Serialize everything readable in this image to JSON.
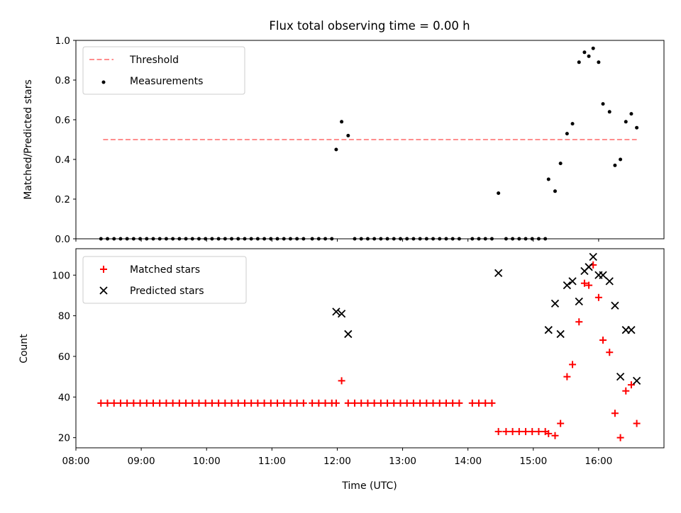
{
  "chart_data": [
    {
      "type": "scatter",
      "title": "Flux total observing time = 0.00 h",
      "xlabel": "",
      "ylabel": "Matched/Predicted stars",
      "xlim": [
        "08:00",
        "17:00"
      ],
      "ylim": [
        0,
        1.0
      ],
      "yticks": [
        "0.0",
        "0.2",
        "0.4",
        "0.6",
        "0.8",
        "1.0"
      ],
      "legend_position": "top-left",
      "threshold": {
        "name": "Threshold",
        "value": 0.5,
        "x_range": [
          "08:25",
          "16:35"
        ],
        "color": "#ff7f7f"
      },
      "series": [
        {
          "name": "Measurements",
          "color": "#000000",
          "points": [
            [
              "08:23",
              0
            ],
            [
              "08:29",
              0
            ],
            [
              "08:35",
              0
            ],
            [
              "08:41",
              0
            ],
            [
              "08:47",
              0
            ],
            [
              "08:53",
              0
            ],
            [
              "08:59",
              0
            ],
            [
              "09:05",
              0
            ],
            [
              "09:11",
              0
            ],
            [
              "09:17",
              0
            ],
            [
              "09:23",
              0
            ],
            [
              "09:29",
              0
            ],
            [
              "09:35",
              0
            ],
            [
              "09:41",
              0
            ],
            [
              "09:47",
              0
            ],
            [
              "09:53",
              0
            ],
            [
              "09:59",
              0
            ],
            [
              "10:05",
              0
            ],
            [
              "10:11",
              0
            ],
            [
              "10:17",
              0
            ],
            [
              "10:23",
              0
            ],
            [
              "10:29",
              0
            ],
            [
              "10:35",
              0
            ],
            [
              "10:41",
              0
            ],
            [
              "10:47",
              0
            ],
            [
              "10:53",
              0
            ],
            [
              "10:59",
              0
            ],
            [
              "11:05",
              0
            ],
            [
              "11:11",
              0
            ],
            [
              "11:17",
              0
            ],
            [
              "11:23",
              0
            ],
            [
              "11:29",
              0
            ],
            [
              "11:37",
              0
            ],
            [
              "11:43",
              0
            ],
            [
              "11:49",
              0
            ],
            [
              "11:55",
              0
            ],
            [
              "11:59",
              0.45
            ],
            [
              "12:04",
              0.59
            ],
            [
              "12:10",
              0.52
            ],
            [
              "12:16",
              0
            ],
            [
              "12:22",
              0
            ],
            [
              "12:28",
              0
            ],
            [
              "12:34",
              0
            ],
            [
              "12:40",
              0
            ],
            [
              "12:46",
              0
            ],
            [
              "12:52",
              0
            ],
            [
              "12:58",
              0
            ],
            [
              "13:04",
              0
            ],
            [
              "13:10",
              0
            ],
            [
              "13:16",
              0
            ],
            [
              "13:22",
              0
            ],
            [
              "13:28",
              0
            ],
            [
              "13:34",
              0
            ],
            [
              "13:40",
              0
            ],
            [
              "13:46",
              0
            ],
            [
              "13:52",
              0
            ],
            [
              "14:04",
              0
            ],
            [
              "14:10",
              0
            ],
            [
              "14:16",
              0
            ],
            [
              "14:22",
              0
            ],
            [
              "14:28",
              0.23
            ],
            [
              "14:35",
              0
            ],
            [
              "14:41",
              0
            ],
            [
              "14:47",
              0
            ],
            [
              "14:53",
              0
            ],
            [
              "14:59",
              0
            ],
            [
              "15:05",
              0
            ],
            [
              "15:11",
              0
            ],
            [
              "15:14",
              0.3
            ],
            [
              "15:20",
              0.24
            ],
            [
              "15:25",
              0.38
            ],
            [
              "15:31",
              0.53
            ],
            [
              "15:36",
              0.58
            ],
            [
              "15:42",
              0.89
            ],
            [
              "15:47",
              0.94
            ],
            [
              "15:51",
              0.92
            ],
            [
              "15:55",
              0.96
            ],
            [
              "16:00",
              0.89
            ],
            [
              "16:04",
              0.68
            ],
            [
              "16:10",
              0.64
            ],
            [
              "16:15",
              0.37
            ],
            [
              "16:20",
              0.4
            ],
            [
              "16:25",
              0.59
            ],
            [
              "16:30",
              0.63
            ],
            [
              "16:35",
              0.56
            ]
          ]
        }
      ]
    },
    {
      "type": "scatter",
      "title": "",
      "xlabel": "Time (UTC)",
      "ylabel": "Count",
      "xlim": [
        "08:00",
        "17:00"
      ],
      "ylim": [
        15,
        113
      ],
      "xticks": [
        "08:00",
        "09:00",
        "10:00",
        "11:00",
        "12:00",
        "13:00",
        "14:00",
        "15:00",
        "16:00"
      ],
      "yticks": [
        "20",
        "40",
        "60",
        "80",
        "100"
      ],
      "legend_position": "top-left",
      "series": [
        {
          "name": "Matched stars",
          "marker": "plus",
          "color": "#ff0000",
          "points": [
            [
              "08:23",
              37
            ],
            [
              "08:29",
              37
            ],
            [
              "08:35",
              37
            ],
            [
              "08:41",
              37
            ],
            [
              "08:47",
              37
            ],
            [
              "08:53",
              37
            ],
            [
              "08:59",
              37
            ],
            [
              "09:05",
              37
            ],
            [
              "09:11",
              37
            ],
            [
              "09:17",
              37
            ],
            [
              "09:23",
              37
            ],
            [
              "09:29",
              37
            ],
            [
              "09:35",
              37
            ],
            [
              "09:41",
              37
            ],
            [
              "09:47",
              37
            ],
            [
              "09:53",
              37
            ],
            [
              "09:59",
              37
            ],
            [
              "10:05",
              37
            ],
            [
              "10:11",
              37
            ],
            [
              "10:17",
              37
            ],
            [
              "10:23",
              37
            ],
            [
              "10:29",
              37
            ],
            [
              "10:35",
              37
            ],
            [
              "10:41",
              37
            ],
            [
              "10:47",
              37
            ],
            [
              "10:53",
              37
            ],
            [
              "10:59",
              37
            ],
            [
              "11:05",
              37
            ],
            [
              "11:11",
              37
            ],
            [
              "11:17",
              37
            ],
            [
              "11:23",
              37
            ],
            [
              "11:29",
              37
            ],
            [
              "11:37",
              37
            ],
            [
              "11:43",
              37
            ],
            [
              "11:49",
              37
            ],
            [
              "11:55",
              37
            ],
            [
              "11:59",
              37
            ],
            [
              "12:04",
              48
            ],
            [
              "12:10",
              37
            ],
            [
              "12:16",
              37
            ],
            [
              "12:22",
              37
            ],
            [
              "12:28",
              37
            ],
            [
              "12:34",
              37
            ],
            [
              "12:40",
              37
            ],
            [
              "12:46",
              37
            ],
            [
              "12:52",
              37
            ],
            [
              "12:58",
              37
            ],
            [
              "13:04",
              37
            ],
            [
              "13:10",
              37
            ],
            [
              "13:16",
              37
            ],
            [
              "13:22",
              37
            ],
            [
              "13:28",
              37
            ],
            [
              "13:34",
              37
            ],
            [
              "13:40",
              37
            ],
            [
              "13:46",
              37
            ],
            [
              "13:52",
              37
            ],
            [
              "14:04",
              37
            ],
            [
              "14:10",
              37
            ],
            [
              "14:16",
              37
            ],
            [
              "14:22",
              37
            ],
            [
              "14:28",
              23
            ],
            [
              "14:35",
              23
            ],
            [
              "14:41",
              23
            ],
            [
              "14:47",
              23
            ],
            [
              "14:53",
              23
            ],
            [
              "14:59",
              23
            ],
            [
              "15:05",
              23
            ],
            [
              "15:11",
              23
            ],
            [
              "15:14",
              22
            ],
            [
              "15:20",
              21
            ],
            [
              "15:25",
              27
            ],
            [
              "15:31",
              50
            ],
            [
              "15:36",
              56
            ],
            [
              "15:42",
              77
            ],
            [
              "15:47",
              96
            ],
            [
              "15:51",
              95
            ],
            [
              "15:55",
              105
            ],
            [
              "16:00",
              89
            ],
            [
              "16:04",
              68
            ],
            [
              "16:10",
              62
            ],
            [
              "16:15",
              32
            ],
            [
              "16:20",
              20
            ],
            [
              "16:25",
              43
            ],
            [
              "16:30",
              46
            ],
            [
              "16:35",
              27
            ]
          ]
        },
        {
          "name": "Predicted stars",
          "marker": "x",
          "color": "#000000",
          "points": [
            [
              "11:59",
              82
            ],
            [
              "12:04",
              81
            ],
            [
              "12:10",
              71
            ],
            [
              "14:28",
              101
            ],
            [
              "15:14",
              73
            ],
            [
              "15:20",
              86
            ],
            [
              "15:25",
              71
            ],
            [
              "15:31",
              95
            ],
            [
              "15:36",
              97
            ],
            [
              "15:42",
              87
            ],
            [
              "15:47",
              102
            ],
            [
              "15:51",
              104
            ],
            [
              "15:55",
              109
            ],
            [
              "16:00",
              100
            ],
            [
              "16:04",
              100
            ],
            [
              "16:10",
              97
            ],
            [
              "16:15",
              85
            ],
            [
              "16:20",
              50
            ],
            [
              "16:25",
              73
            ],
            [
              "16:30",
              73
            ],
            [
              "16:35",
              48
            ]
          ]
        }
      ]
    }
  ]
}
